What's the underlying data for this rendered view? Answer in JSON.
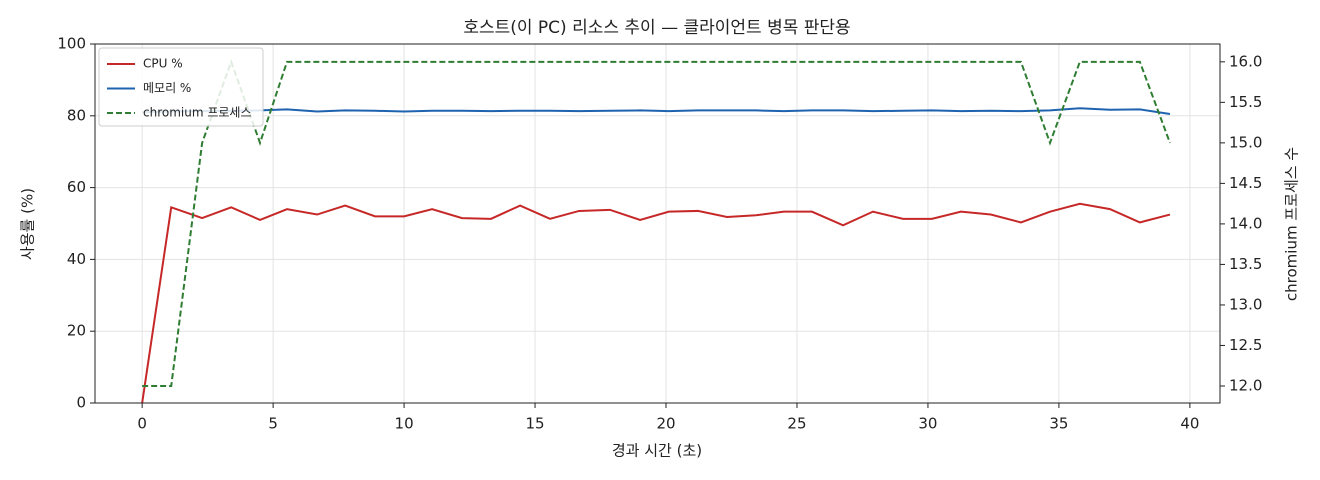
{
  "chart_data": {
    "type": "line",
    "title": "호스트(이 PC) 리소스 추이 — 클라이언트 병목 판단용",
    "x_label": "경과 시간 (초)",
    "y_label": "사용률 (%)",
    "y2_label": "chromium 프로세스 수",
    "x": [
      0,
      1.11,
      2.29,
      3.4,
      4.5,
      5.53,
      6.68,
      7.75,
      8.89,
      10.0,
      11.07,
      12.21,
      13.32,
      14.43,
      15.57,
      16.68,
      17.86,
      19.01,
      20.11,
      21.22,
      22.33,
      23.44,
      24.5,
      25.57,
      26.76,
      27.9,
      29.05,
      30.15,
      31.26,
      32.4,
      33.55,
      34.66,
      35.8,
      36.95,
      38.09,
      39.24
    ],
    "series": [
      {
        "name": "CPU %",
        "color": "#c62828",
        "dashed": false,
        "axis": "y",
        "values": [
          0,
          54.5,
          51.5,
          54.5,
          51,
          54,
          52.5,
          55,
          52,
          52,
          54,
          51.5,
          51.3,
          55,
          51.3,
          53.5,
          53.8,
          51,
          53.3,
          53.5,
          51.8,
          52.3,
          53.3,
          53.3,
          49.5,
          53.3,
          51.3,
          51.3,
          53.3,
          52.5,
          50.3,
          53.3,
          55.5,
          54,
          50.3,
          52.5
        ]
      },
      {
        "name": "메모리 %",
        "color": "#1f63b0",
        "dashed": false,
        "axis": "y",
        "values": [
          81,
          81.2,
          81.3,
          81.4,
          81.5,
          81.8,
          81.2,
          81.5,
          81.4,
          81.2,
          81.4,
          81.4,
          81.3,
          81.4,
          81.4,
          81.3,
          81.4,
          81.5,
          81.3,
          81.5,
          81.5,
          81.5,
          81.3,
          81.5,
          81.5,
          81.3,
          81.4,
          81.5,
          81.3,
          81.4,
          81.3,
          81.5,
          82.1,
          81.7,
          81.8,
          80.5
        ]
      },
      {
        "name": "chromium 프로세스",
        "color": "#2e7d32",
        "dashed": true,
        "axis": "y2",
        "values": [
          12,
          12,
          15,
          16,
          15,
          16,
          16,
          16,
          16,
          16,
          16,
          16,
          16,
          16,
          16,
          16,
          16,
          16,
          16,
          16,
          16,
          16,
          16,
          16,
          16,
          16,
          16,
          16,
          16,
          16,
          16,
          15,
          16,
          16,
          16,
          15
        ]
      }
    ],
    "xlim": [
      -1.8,
      41.15
    ],
    "xticks": [
      0,
      5,
      10,
      15,
      20,
      25,
      30,
      35,
      40
    ],
    "ylim": [
      0,
      100
    ],
    "yticks": [
      0,
      20,
      40,
      60,
      80,
      100
    ],
    "y2lim": [
      11.79,
      16.22
    ],
    "y2ticks": [
      {
        "value": 12,
        "label": "12.0"
      },
      12.5,
      {
        "value": 13,
        "label": "13.0"
      },
      13.5,
      {
        "value": 14,
        "label": "14.0"
      },
      14.5,
      {
        "value": 15,
        "label": "15.0"
      },
      15.5,
      {
        "value": 16,
        "label": "16.0"
      }
    ],
    "grid": true,
    "legend": "upper-left"
  }
}
